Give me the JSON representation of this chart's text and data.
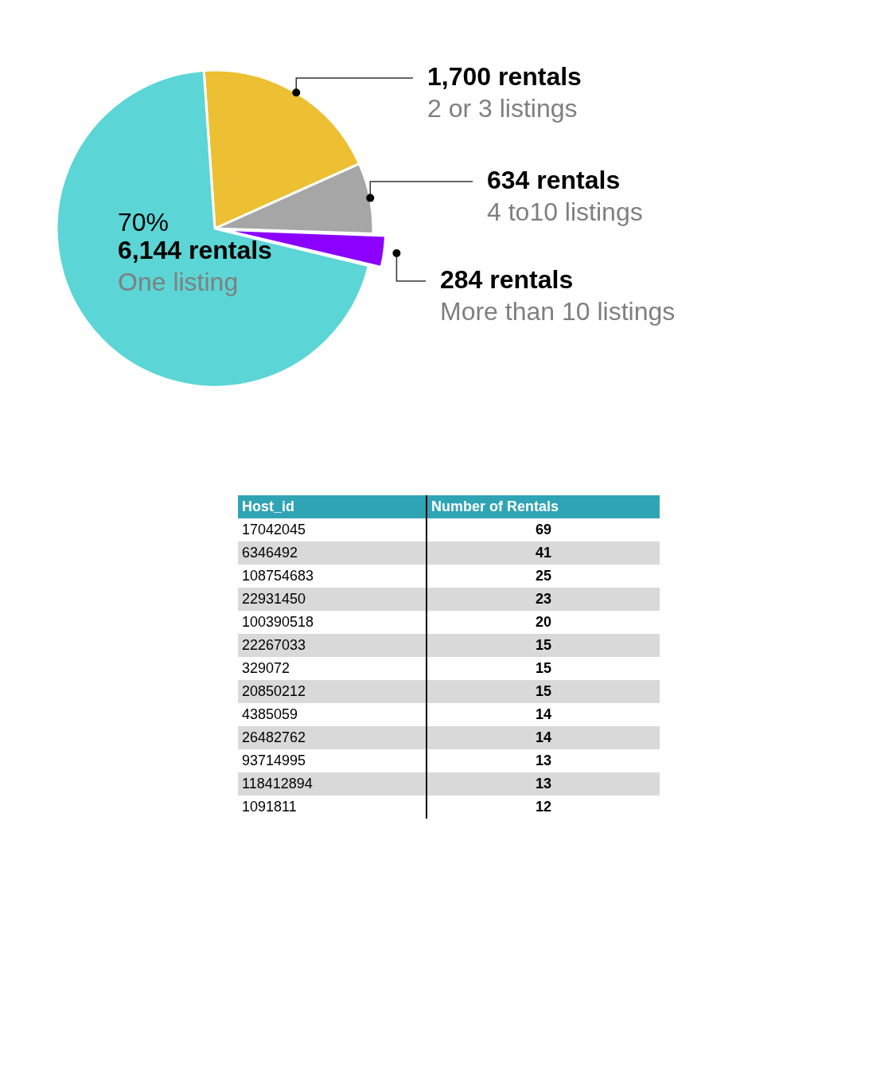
{
  "chart_data": [
    {
      "type": "pie",
      "categories": [
        "2 or 3 listings",
        "4 to10 listings",
        "More than 10 listings",
        "One listing"
      ],
      "values": [
        1700,
        634,
        284,
        6144
      ],
      "colors": [
        "#ecc032",
        "#a6a6a6",
        "#8b00ff",
        "#5bd5d5"
      ],
      "value_labels": [
        "1,700 rentals",
        "634 rentals",
        "284 rentals",
        "6,144 rentals"
      ],
      "annotations": [
        {
          "text": "70%",
          "x": "One listing"
        }
      ]
    },
    {
      "type": "other",
      "xlabel": "Host_id",
      "ylabel": "Number of Rentals",
      "data_labels": true,
      "categories": [
        "17042045",
        "6346492",
        "108754683",
        "22931450",
        "100390518",
        "22267033",
        "329072",
        "20850212",
        "4385059",
        "26482762",
        "93714995",
        "118412894",
        "1091811"
      ],
      "values": [
        69,
        41,
        25,
        23,
        20,
        15,
        15,
        15,
        14,
        14,
        13,
        13,
        12
      ]
    }
  ]
}
